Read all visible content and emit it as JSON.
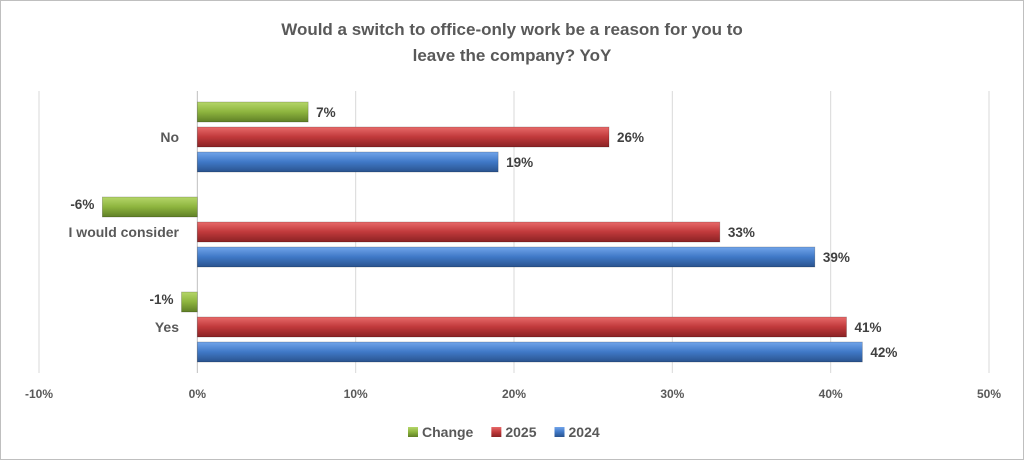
{
  "chart_data": {
    "type": "bar",
    "orientation": "horizontal",
    "title_lines": [
      "Would a switch to office-only work be a reason for you to",
      "leave the company? YoY"
    ],
    "categories": [
      "No",
      "I would consider",
      "Yes"
    ],
    "series": [
      {
        "name": "Change",
        "values": [
          7,
          -6,
          -1
        ],
        "labels": [
          "7%",
          "-6%",
          "-1%"
        ],
        "color": "#8db43e"
      },
      {
        "name": "2025",
        "values": [
          26,
          33,
          41
        ],
        "labels": [
          "26%",
          "33%",
          "41%"
        ],
        "color": "#c0393b"
      },
      {
        "name": "2024",
        "values": [
          19,
          39,
          42
        ],
        "labels": [
          "19%",
          "39%",
          "42%"
        ],
        "color": "#3f78c6"
      }
    ],
    "xlim": [
      -10,
      50
    ],
    "xticks": [
      -10,
      0,
      10,
      20,
      30,
      40,
      50
    ],
    "xtick_labels": [
      "-10%",
      "0%",
      "10%",
      "20%",
      "30%",
      "40%",
      "50%"
    ],
    "grid": true,
    "legend_position": "bottom"
  }
}
